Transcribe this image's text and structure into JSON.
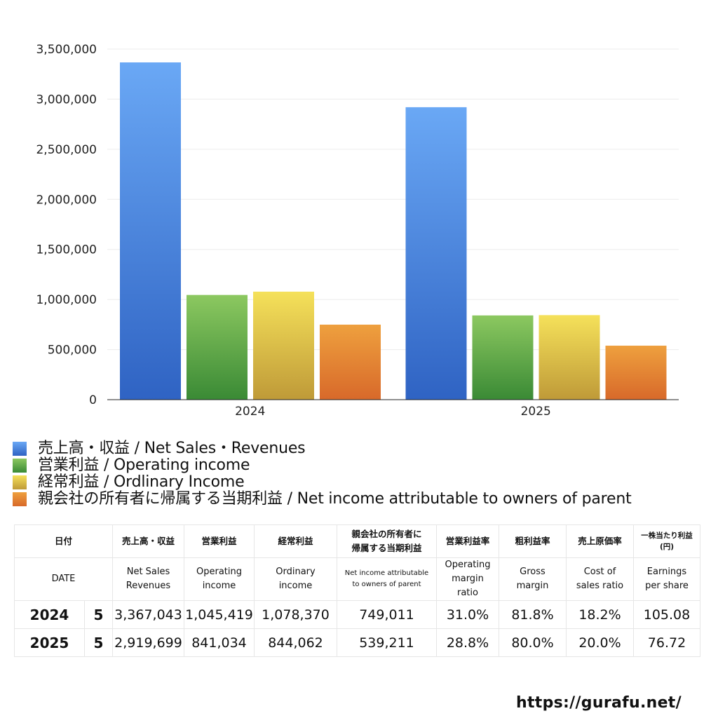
{
  "chart_data": {
    "type": "bar",
    "categories": [
      "2024",
      "2025"
    ],
    "series": [
      {
        "name": "売上高・収益 / Net Sales・Revenues",
        "values": [
          3367043,
          2919699
        ],
        "color_top": "#6aa8f5",
        "color_bottom": "#2f63c3"
      },
      {
        "name": "営業利益 / Operating income",
        "values": [
          1045419,
          841034
        ],
        "color_top": "#8cc860",
        "color_bottom": "#3a8a35"
      },
      {
        "name": "経常利益 / Ordlinary Income",
        "values": [
          1078370,
          844062
        ],
        "color_top": "#f5e15a",
        "color_bottom": "#bf9a38"
      },
      {
        "name": "親会社の所有者に帰属する当期利益 / Net income attributable to owners of parent",
        "values": [
          749011,
          539211
        ],
        "color_top": "#eea03e",
        "color_bottom": "#d8692a"
      }
    ],
    "ylim": [
      0,
      3500000
    ],
    "yticks": [
      "0",
      "500,000",
      "1,000,000",
      "1,500,000",
      "2,000,000",
      "2,500,000",
      "3,000,000",
      "3,500,000"
    ],
    "grid": true,
    "legend": "bottom"
  },
  "table": {
    "header_jp": [
      "日付",
      "売上高・収益",
      "営業利益",
      "経常利益",
      "親会社の所有者に\n帰属する当期利益",
      "営業利益率",
      "粗利益率",
      "売上原価率",
      "一株当たり利益\n(円)"
    ],
    "header_en": [
      "DATE",
      "Net Sales\nRevenues",
      "Operating\nincome",
      "Ordinary\nincome",
      "Net income attributable\nto owners of parent",
      "Operating\nmargin\nratio",
      "Gross\nmargin",
      "Cost of\nsales ratio",
      "Earnings\nper share"
    ],
    "rows": [
      {
        "year": "2024",
        "month": "5",
        "sales": "3,367,043",
        "op": "1,045,419",
        "ord": "1,078,370",
        "net": "749,011",
        "opm": "31.0%",
        "gm": "81.8%",
        "cos": "18.2%",
        "eps": "105.08"
      },
      {
        "year": "2025",
        "month": "5",
        "sales": "2,919,699",
        "op": "841,034",
        "ord": "844,062",
        "net": "539,211",
        "opm": "28.8%",
        "gm": "80.0%",
        "cos": "20.0%",
        "eps": "76.72"
      }
    ]
  },
  "footer": {
    "url": "https://gurafu.net/"
  }
}
